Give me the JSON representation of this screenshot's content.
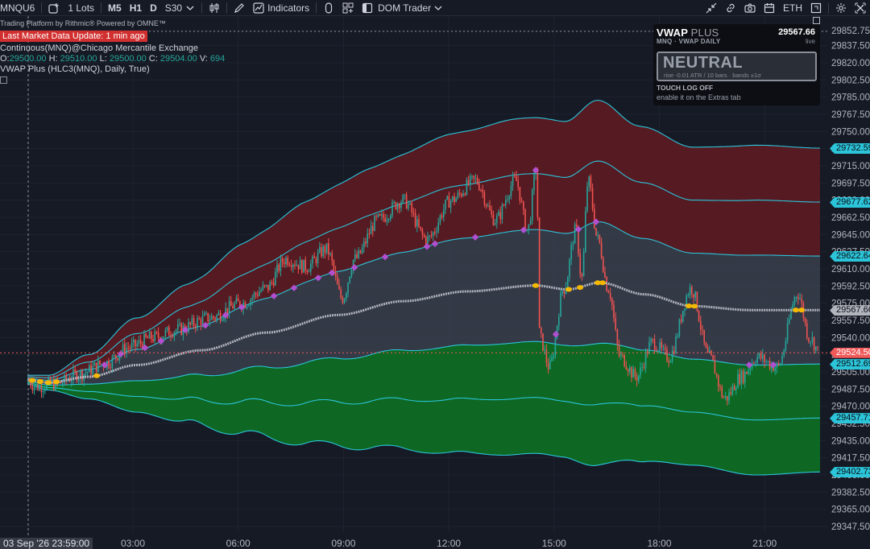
{
  "toolbar": {
    "symbol": "MNQU6",
    "lots": "1 Lots",
    "timeframes": [
      "M5",
      "H1",
      "D"
    ],
    "interval": "S30",
    "indicators_label": "Indicators",
    "dom_label": "DOM Trader",
    "session": "ETH"
  },
  "legend": {
    "powered": "Trading Platform by Rithmic® Powered by OMNE™",
    "update": "Last Market Data Update: 1 min ago",
    "symbol_line": "Continuous(MNQ)@Chicago Mercantile Exchange",
    "o_label": "O:",
    "o": "29500.00",
    "h_label": "H:",
    "h": "29510.00",
    "l_label": "L:",
    "l": "29500.00",
    "c_label": "C:",
    "c": "29504.00",
    "v_label": "V:",
    "v": "694",
    "study": "VWAP Plus (HLC3(MNQ), Daily, True)"
  },
  "vwap_panel": {
    "title": "VWAP",
    "title_suffix": "PLUS",
    "price": "29567.66",
    "subtitle": "MNQ · VWAP DAILY",
    "live": "live",
    "state": "NEUTRAL",
    "stats": "rise -0.01 ATR / 10 bars · bands ±1σ",
    "touch_log": "TOUCH LOG OFF",
    "hint": "enable it on the Extras tab"
  },
  "price_axis": {
    "ticks": [
      "29852.75",
      "29837.50",
      "29820.00",
      "29802.50",
      "29785.00",
      "29767.50",
      "29750.00",
      "29732.50",
      "29715.00",
      "29697.50",
      "29680.00",
      "29662.50",
      "29645.00",
      "29627.50",
      "29610.00",
      "29592.50",
      "29575.00",
      "29557.50",
      "29540.00",
      "29522.50",
      "29505.00",
      "29487.50",
      "29470.00",
      "29452.50",
      "29435.00",
      "29417.50",
      "29400.00",
      "29382.50",
      "29365.00",
      "29347.50"
    ],
    "tags": [
      {
        "label": "29732.59",
        "value": 29732.59,
        "style": "cyan"
      },
      {
        "label": "29677.62",
        "value": 29677.62,
        "style": "cyan"
      },
      {
        "label": "29622.64",
        "value": 29622.64,
        "style": "cyan"
      },
      {
        "label": "29567.66",
        "value": 29567.66,
        "style": "gray"
      },
      {
        "label": "29524.50",
        "value": 29524.5,
        "style": "red"
      },
      {
        "label": "29512.69",
        "value": 29512.69,
        "style": "cyan"
      },
      {
        "label": "29457.71",
        "value": 29457.71,
        "style": "cyan"
      },
      {
        "label": "29402.73",
        "value": 29402.73,
        "style": "cyan"
      }
    ]
  },
  "time_axis": {
    "labels": [
      "03:00",
      "06:00",
      "09:00",
      "12:00",
      "15:00",
      "18:00",
      "21:00"
    ],
    "cursor_date": "03 Sep '26 23:59:00"
  },
  "colors": {
    "background": "#161a25",
    "band_line": "#2bc4d9",
    "upper_fill": "#5a1a22",
    "lower_fill": "#0e6b22",
    "vwap": "#b2b5be",
    "touch_up": "#b04fd0",
    "touch_vwap": "#f5b800",
    "last_price": "#f05a5a"
  }
}
